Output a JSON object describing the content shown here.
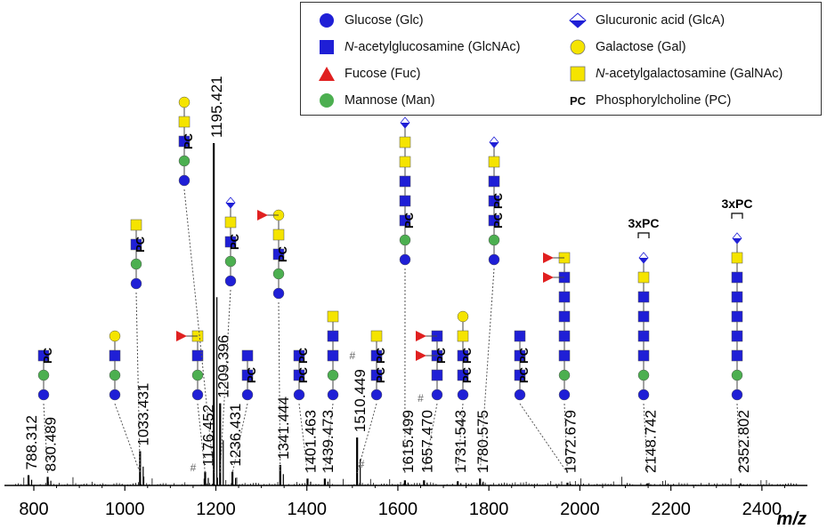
{
  "chart_data": {
    "type": "line",
    "title": "",
    "xlabel": "m/z",
    "ylabel": "",
    "xlim": [
      755,
      2500
    ],
    "ylim": [
      0,
      1
    ],
    "grid": false,
    "x_ticks": [
      800,
      1000,
      1200,
      1400,
      1600,
      1800,
      2000,
      2200,
      2400
    ],
    "legend": {
      "placement": "top-right",
      "items": [
        {
          "symbol": "circle",
          "color": "#1f1fd6",
          "label": "Glucose (Glc)"
        },
        {
          "symbol": "square",
          "color": "#1f1fd6",
          "label_italic": "N",
          "label_rest": "-acetylglucosamine (GlcNAc)",
          "label": "N-acetylglucosamine (GlcNAc)"
        },
        {
          "symbol": "triangle",
          "color": "#e02020",
          "label": "Fucose (Fuc)"
        },
        {
          "symbol": "circle",
          "color": "#4caf50",
          "label": "Mannose (Man)"
        },
        {
          "symbol": "diamond-half",
          "color": "#1f1fd6",
          "label": "Glucuronic acid (GlcA)"
        },
        {
          "symbol": "circle",
          "color": "#f5e400",
          "label": "Galactose (Gal)"
        },
        {
          "symbol": "square",
          "color": "#f5e400",
          "label_italic": "N",
          "label_rest": "-acetylgalactosamine (GalNAc)",
          "label": "N-acetylgalactosamine (GalNAc)"
        },
        {
          "symbol": "text",
          "text": "PC",
          "label": "Phosphorylcholine (PC)"
        }
      ]
    },
    "peaks": [
      {
        "mz": 788.312,
        "label": "788.312",
        "intensity": 0.03
      },
      {
        "mz": 830.489,
        "label": "830.489",
        "intensity": 0.025
      },
      {
        "mz": 1033.431,
        "label": "1033.431",
        "intensity": 0.1
      },
      {
        "mz": 1176.452,
        "label": "1176.452",
        "intensity": 0.04
      },
      {
        "mz": 1195.421,
        "label": "1195.421",
        "intensity": 1.0
      },
      {
        "mz": 1209.396,
        "label": "1209.396",
        "intensity": 0.24
      },
      {
        "mz": 1236.431,
        "label": "1236.431",
        "intensity": 0.04
      },
      {
        "mz": 1341.444,
        "label": "1341.444",
        "intensity": 0.06
      },
      {
        "mz": 1401.463,
        "label": "1401.463",
        "intensity": 0.02
      },
      {
        "mz": 1439.473,
        "label": "1439.473",
        "intensity": 0.02
      },
      {
        "mz": 1510.449,
        "label": "1510.449",
        "intensity": 0.14
      },
      {
        "mz": 1615.499,
        "label": "1615.499",
        "intensity": 0.015
      },
      {
        "mz": 1657.47,
        "label": "1657.470",
        "intensity": 0.015
      },
      {
        "mz": 1731.543,
        "label": "1731.543",
        "intensity": 0.012
      },
      {
        "mz": 1780.575,
        "label": "1780.575",
        "intensity": 0.02
      },
      {
        "mz": 1972.679,
        "label": "1972.679",
        "intensity": 0.008
      },
      {
        "mz": 2148.742,
        "label": "2148.742",
        "intensity": 0.006
      },
      {
        "mz": 2352.802,
        "label": "2352.802",
        "intensity": 0.006
      }
    ],
    "hash_marks": [
      1150,
      1500,
      1520,
      1650
    ],
    "annotations": [
      "#",
      "#",
      "#",
      "3xPC",
      "3xPC"
    ],
    "glycan_structures": [
      {
        "peak": "830.489",
        "units": [
          "Glc",
          "Man",
          "GlcNAc+PC"
        ]
      },
      {
        "peak": "1033.431",
        "units": [
          "Glc",
          "Man",
          "GlcNAc",
          "Gal"
        ]
      },
      {
        "peak": "1033.431",
        "units": [
          "Glc",
          "Man",
          "GlcNAc+PC",
          "GalNAc"
        ]
      },
      {
        "peak": "1176.452",
        "units": [
          "Glc",
          "Man",
          "GlcNAc",
          "GalNAc",
          "Fuc"
        ]
      },
      {
        "peak": "1195.421",
        "units": [
          "Glc",
          "Man",
          "GlcNAc+PC",
          "GalNAc",
          "Gal"
        ]
      },
      {
        "peak": "1209.396",
        "units": [
          "Glc",
          "Man",
          "GlcNAc+PC",
          "GalNAc",
          "GlcA"
        ]
      },
      {
        "peak": "1236.431",
        "units": [
          "Glc",
          "GlcNAc+PC",
          "GlcNAc"
        ]
      },
      {
        "peak": "1341.444",
        "units": [
          "Glc",
          "Man",
          "GlcNAc+PC",
          "GalNAc",
          "Gal",
          "Fuc"
        ]
      },
      {
        "peak": "1401.463",
        "units": [
          "Glc",
          "GlcNAc+PC",
          "GlcNAc+PC"
        ]
      },
      {
        "peak": "1439.473",
        "units": [
          "Glc",
          "Man",
          "GlcNAc",
          "GlcNAc",
          "GalNAc"
        ]
      },
      {
        "peak": "1510.449",
        "units": [
          "Glc",
          "GlcNAc+PC",
          "GlcNAc+PC",
          "GalNAc"
        ]
      },
      {
        "peak": "1615.499",
        "units": [
          "Glc",
          "Man",
          "GlcNAc+PC",
          "GlcNAc",
          "GlcNAc",
          "GalNAc",
          "GalNAc",
          "GlcA"
        ]
      },
      {
        "peak": "1657.470",
        "units": [
          "Glc",
          "GlcNAc",
          "GlcNAc+PC",
          "GlcNAc",
          "Fuc",
          "Fuc"
        ]
      },
      {
        "peak": "1731.543",
        "units": [
          "Glc",
          "GlcNAc+PC",
          "GlcNAc+PC",
          "GalNAc",
          "Gal"
        ]
      },
      {
        "peak": "1780.575",
        "units": [
          "Glc",
          "Man",
          "GlcNAc+PC",
          "GlcNAc+PC",
          "GlcNAc",
          "GalNAc",
          "GlcA"
        ]
      },
      {
        "peak": "1972.679",
        "units": [
          "Glc",
          "GlcNAc+PC",
          "GlcNAc+PC",
          "GlcNAc"
        ]
      },
      {
        "peak": "1972.679",
        "units": [
          "Glc",
          "Man",
          "GlcNAc",
          "GlcNAc",
          "GlcNAc",
          "GlcNAc",
          "GlcNAc",
          "GalNAc",
          "Fuc",
          "Fuc"
        ]
      },
      {
        "peak": "2148.742",
        "units": [
          "Glc",
          "Man",
          "GlcNAc",
          "GlcNAc",
          "GlcNAc",
          "GlcNAc",
          "GalNAc",
          "GlcA"
        ],
        "label": "3xPC"
      },
      {
        "peak": "2352.802",
        "units": [
          "Glc",
          "Man",
          "GlcNAc",
          "GlcNAc",
          "GlcNAc",
          "GlcNAc",
          "GlcNAc",
          "GalNAc",
          "GlcA"
        ],
        "label": "3xPC"
      }
    ]
  }
}
